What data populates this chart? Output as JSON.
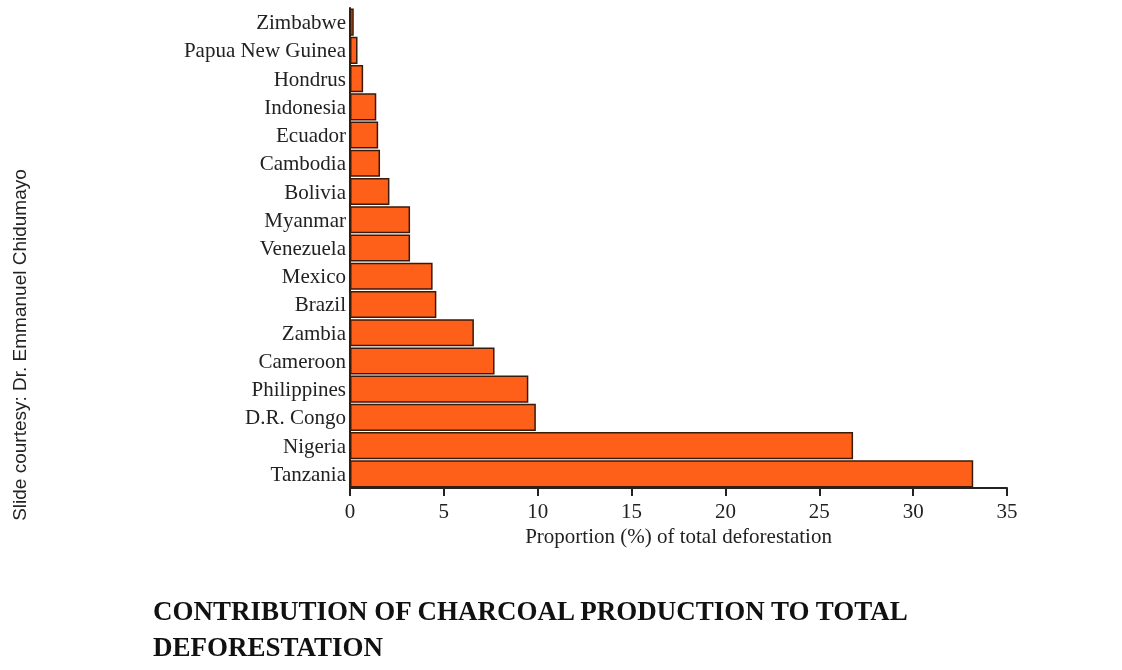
{
  "chart_data": {
    "type": "bar",
    "orientation": "horizontal",
    "title": "CONTRIBUTION OF CHARCOAL PRODUCTION TO TOTAL DEFORESTATION",
    "xlabel": "Proportion (%) of total deforestation",
    "annotations": [
      "Slide courtesy: Dr. Emmanuel Chidumayo"
    ],
    "categories": [
      "Zimbabwe",
      "Papua New Guinea",
      "Hondrus",
      "Indonesia",
      "Ecuador",
      "Cambodia",
      "Bolivia",
      "Myanmar",
      "Venezuela",
      "Mexico",
      "Brazil",
      "Zambia",
      "Cameroon",
      "Philippines",
      "D.R. Congo",
      "Nigeria",
      "Tanzania"
    ],
    "values": [
      0.2,
      0.4,
      0.7,
      1.4,
      1.5,
      1.6,
      2.1,
      3.2,
      3.2,
      4.4,
      4.6,
      6.6,
      7.7,
      9.5,
      9.9,
      26.8,
      33.2
    ],
    "color": "#ff6019",
    "xlim": [
      0,
      35
    ],
    "xticks": [
      0,
      5,
      10,
      15,
      20,
      25,
      30,
      35
    ],
    "grid": false
  }
}
